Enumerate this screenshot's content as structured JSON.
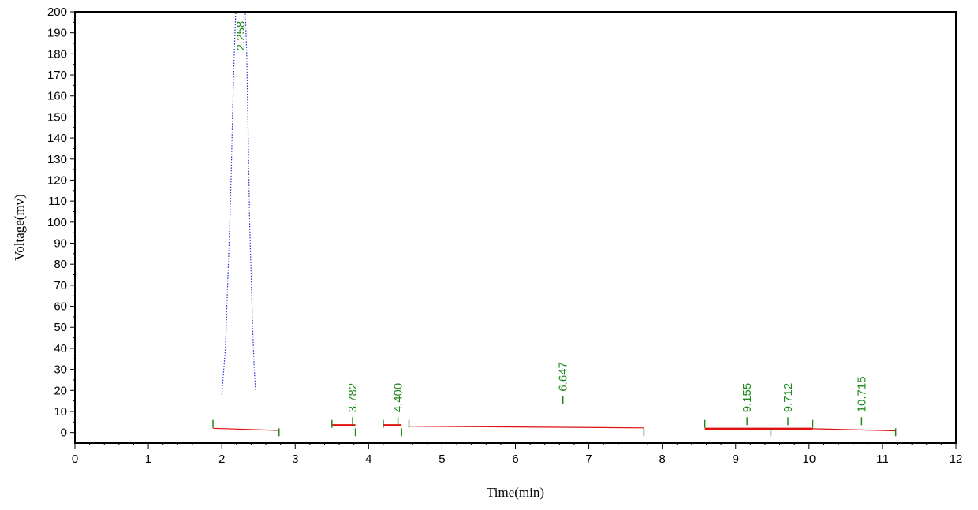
{
  "chart_data": {
    "type": "line",
    "title": "",
    "xlabel": "Time(min)",
    "ylabel": "Voltage(mv)",
    "xlim": [
      0,
      12
    ],
    "ylim": [
      -5,
      200
    ],
    "x_ticks": [
      "0",
      "1",
      "2",
      "3",
      "4",
      "5",
      "6",
      "7",
      "8",
      "9",
      "10",
      "11",
      "12"
    ],
    "y_ticks": [
      "0",
      "10",
      "20",
      "30",
      "40",
      "50",
      "60",
      "70",
      "80",
      "90",
      "100",
      "110",
      "120",
      "130",
      "140",
      "150",
      "160",
      "170",
      "180",
      "190",
      "200"
    ],
    "grid": false,
    "colors": {
      "signal": "#1f2fd6",
      "baseline": "#e01010",
      "label": "#1e8a1e",
      "axis": "#000000"
    },
    "signal_series": {
      "name": "",
      "x": [
        2.0,
        2.05,
        2.08,
        2.11,
        2.13,
        2.15,
        2.17,
        2.19,
        2.21,
        2.23,
        2.26,
        2.29,
        2.32,
        2.34,
        2.36,
        2.38,
        2.4,
        2.42,
        2.44,
        2.46
      ],
      "y": [
        18,
        40,
        70,
        100,
        125,
        155,
        180,
        200,
        200,
        200,
        200,
        200,
        200,
        180,
        140,
        100,
        75,
        50,
        32,
        20
      ]
    },
    "baselines": [
      {
        "x": [
          1.88,
          2.78
        ],
        "y": [
          2.0,
          1.0
        ]
      },
      {
        "x": [
          3.5,
          3.82
        ],
        "y": [
          3.5,
          3.5
        ]
      },
      {
        "x": [
          4.2,
          4.45
        ],
        "y": [
          3.5,
          3.5
        ]
      },
      {
        "x": [
          4.55,
          7.75
        ],
        "y": [
          3.0,
          2.2
        ]
      },
      {
        "x": [
          8.58,
          9.48
        ],
        "y": [
          1.8,
          1.8
        ]
      },
      {
        "x": [
          9.48,
          10.05
        ],
        "y": [
          1.8,
          1.8
        ]
      },
      {
        "x": [
          10.05,
          11.18
        ],
        "y": [
          1.8,
          0.8
        ]
      }
    ],
    "boundary_marks": [
      1.88,
      2.78,
      3.5,
      3.82,
      4.2,
      4.45,
      4.55,
      7.75,
      8.58,
      9.48,
      10.05,
      11.18
    ],
    "peaks": [
      {
        "rt": 2.258,
        "label": "2.258"
      },
      {
        "rt": 3.782,
        "label": "3.782"
      },
      {
        "rt": 4.4,
        "label": "4.400"
      },
      {
        "rt": 6.647,
        "label": "6.647"
      },
      {
        "rt": 9.155,
        "label": "9.155"
      },
      {
        "rt": 9.712,
        "label": "9.712"
      },
      {
        "rt": 10.715,
        "label": "10.715"
      }
    ]
  }
}
